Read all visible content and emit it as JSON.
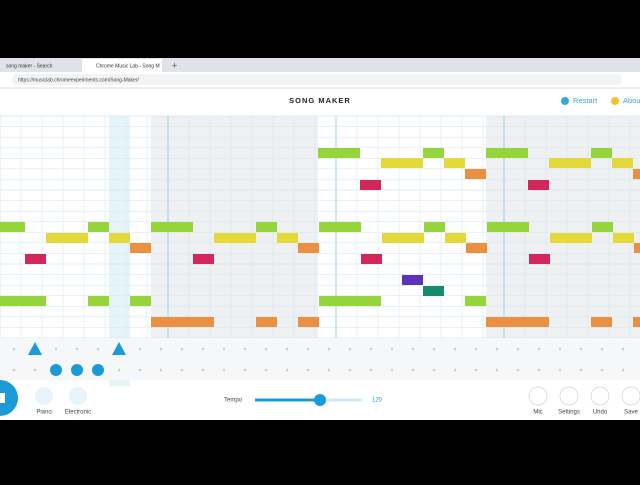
{
  "browser": {
    "tabs": [
      "song maker - Search",
      "Chrome Music Lab - Song M"
    ],
    "url": "https://musiclab.chromeexperiments.com/Song-Maker/"
  },
  "header": {
    "title": "SONG MAKER",
    "restart": "Restart",
    "about": "About"
  },
  "footer": {
    "instruments": [
      "Piano",
      "Electronic"
    ],
    "tempo_label": "Tempo",
    "tempo_value": "120",
    "buttons": [
      "Mic",
      "Settings",
      "Undo",
      "Save"
    ]
  }
}
